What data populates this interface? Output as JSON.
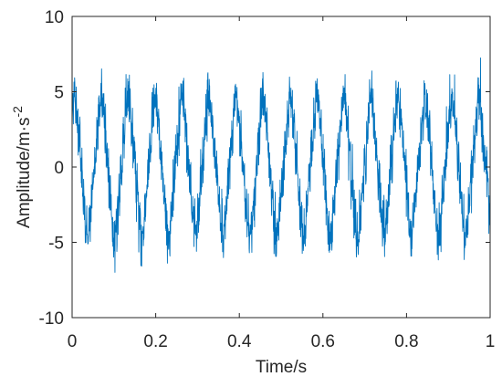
{
  "chart_data": {
    "type": "line",
    "xlabel": "Time/s",
    "ylabel": "Amplitude/m·s",
    "ylabel_superscript": "-2",
    "xlim": [
      0,
      1
    ],
    "ylim": [
      -10,
      10
    ],
    "xticks": [
      "0",
      "0.2",
      "0.4",
      "0.6",
      "0.8",
      "1"
    ],
    "yticks": [
      "-10",
      "-5",
      "0",
      "5",
      "10"
    ],
    "grid": false,
    "series": [
      {
        "color": "#0072BD",
        "signal": {
          "kind": "noisy-sinusoid",
          "sample_rate_hz": 2000,
          "frequency_hz": 15.5,
          "amplitude": 4.2,
          "phase_deg": 60,
          "noise_amplitude": 1.6,
          "peak_max": 7.5,
          "trough_min": -8.6
        }
      }
    ]
  }
}
